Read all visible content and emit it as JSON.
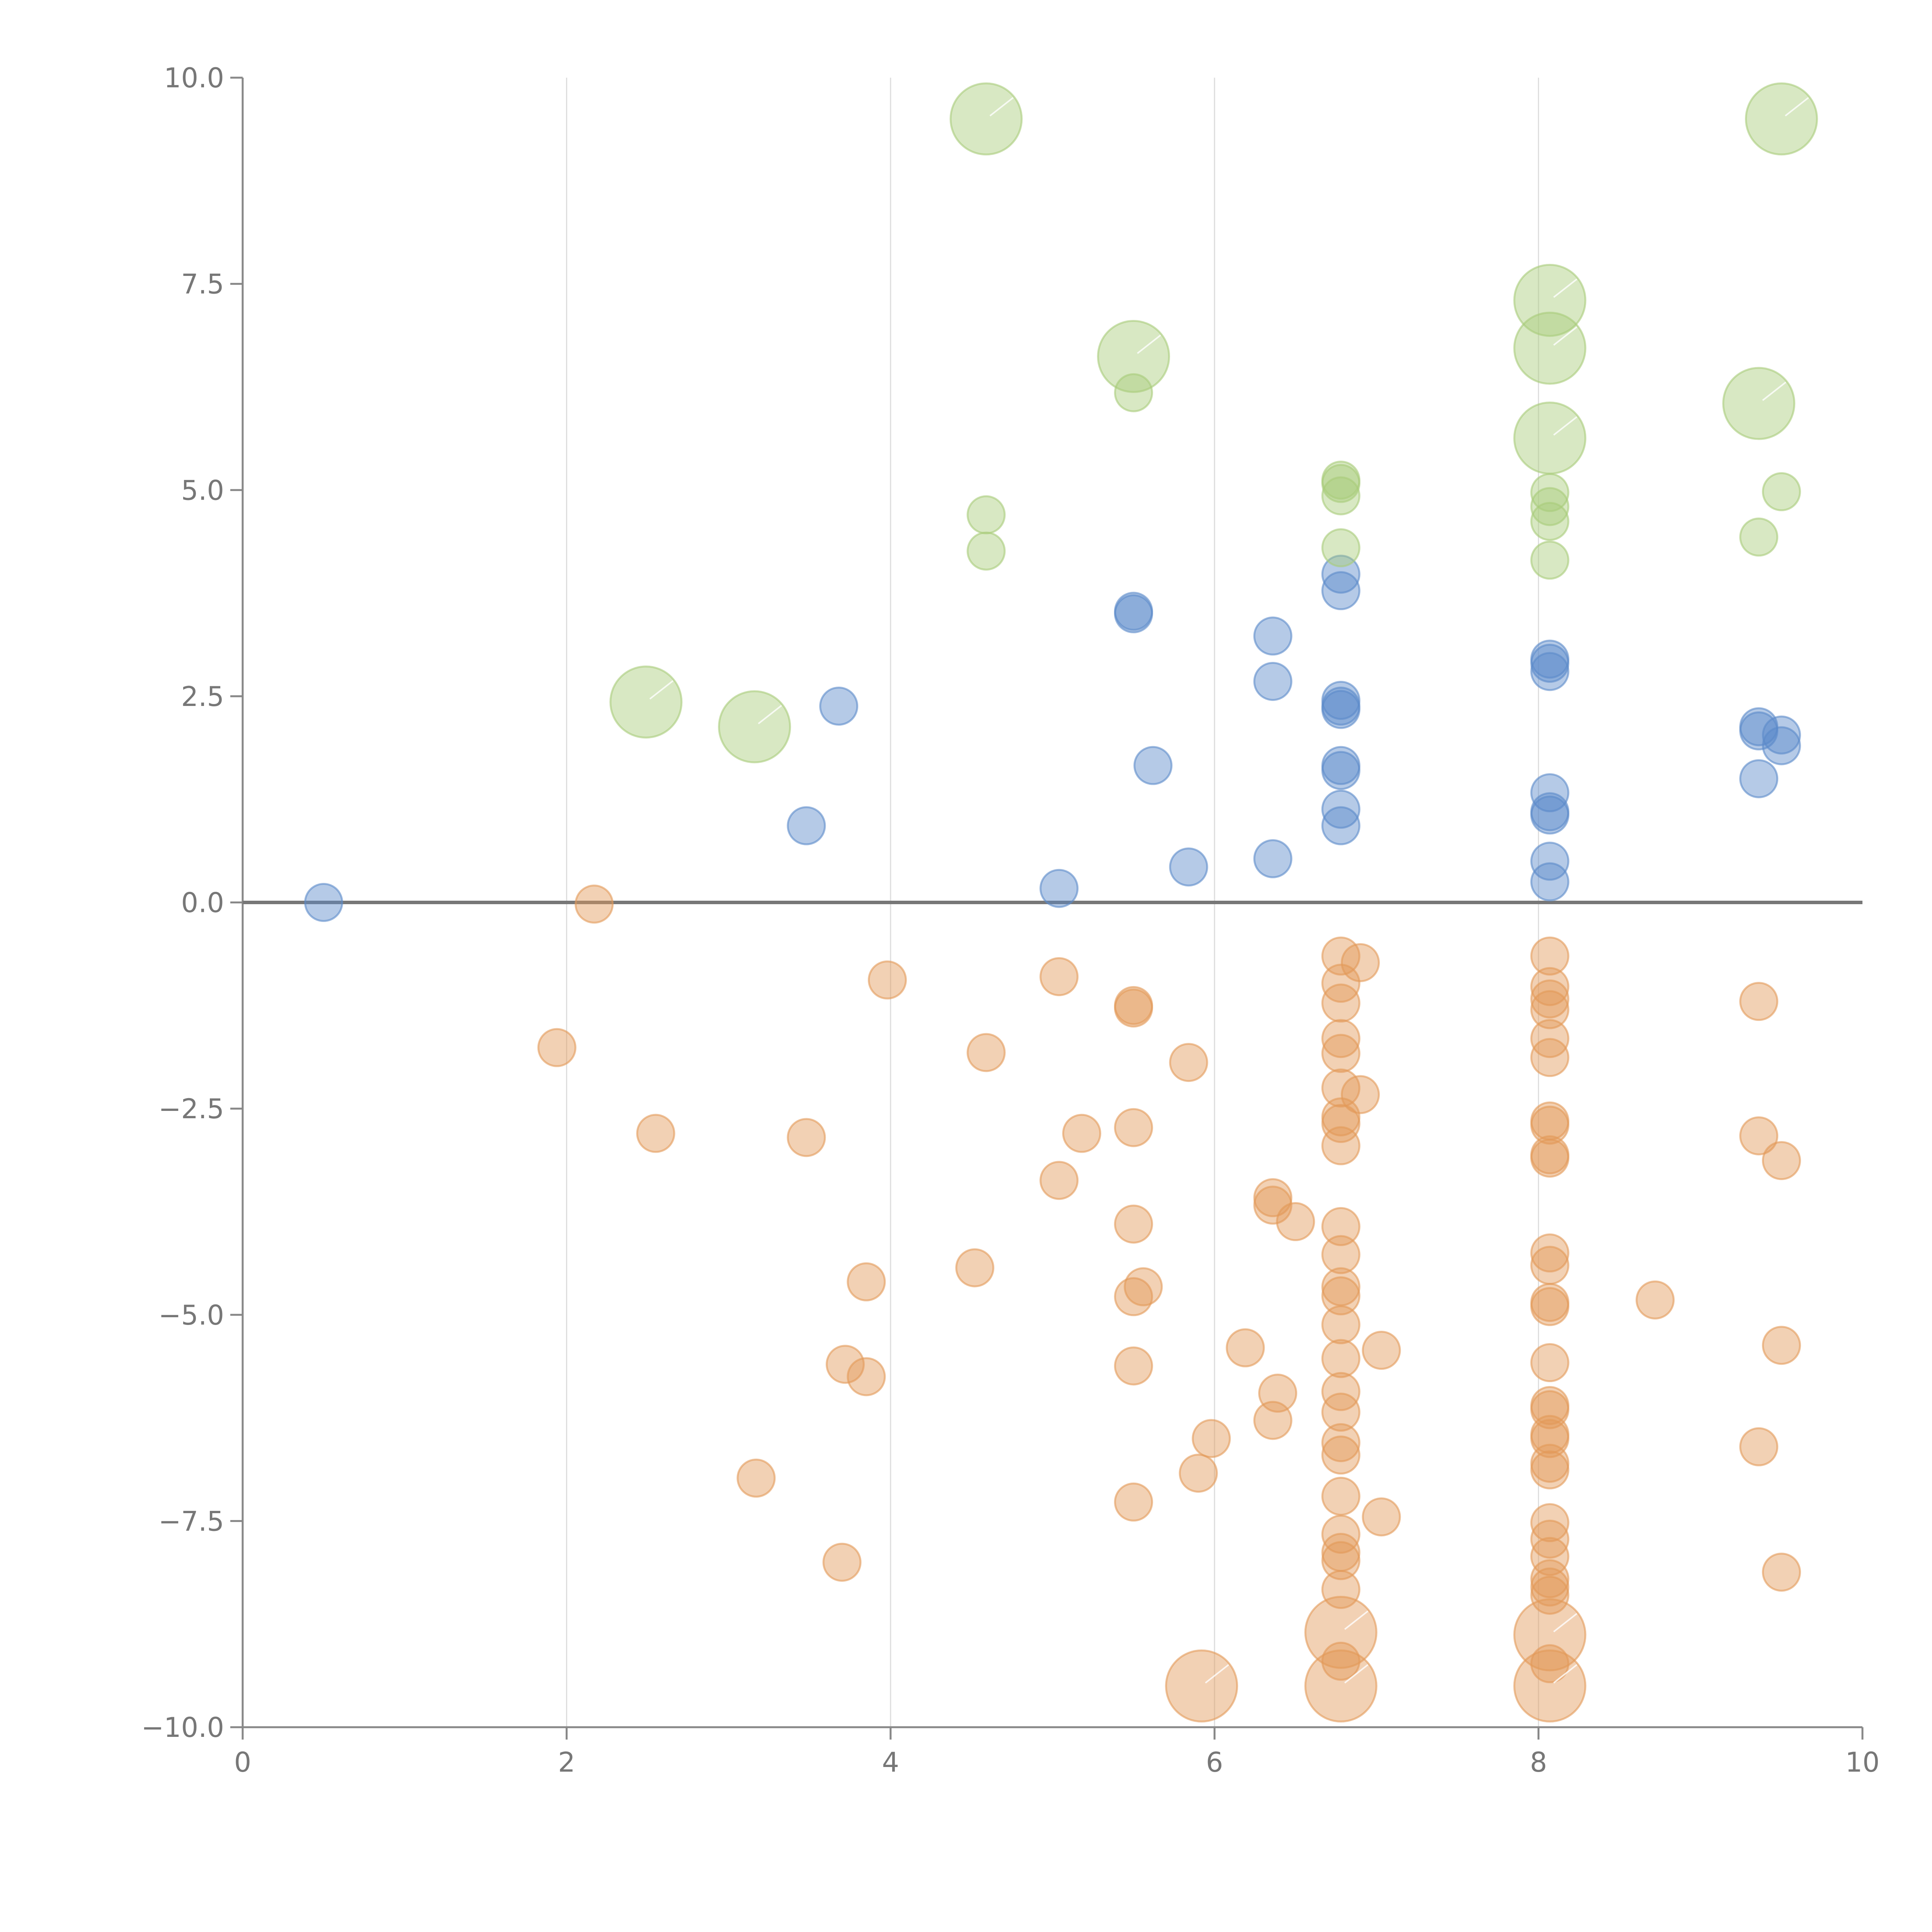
{
  "chart_data": {
    "type": "scatter",
    "title": "",
    "xlabel": "",
    "ylabel": "",
    "xlim": [
      0,
      10
    ],
    "ylim": [
      -10,
      10
    ],
    "grid": "vertical",
    "x_ticks": [
      "0",
      "2",
      "4",
      "6",
      "8",
      "10"
    ],
    "x_tick_values": [
      0,
      2,
      4,
      6,
      8,
      10
    ],
    "y_ticks": [
      "10.0",
      "7.5",
      "5.0",
      "2.5",
      "0.0",
      "−2.5",
      "−5.0",
      "−7.5",
      "−10.0"
    ],
    "y_tick_values": [
      10,
      7.5,
      5,
      2.5,
      0,
      -2.5,
      -5,
      -7.5,
      -10
    ],
    "colors": {
      "positive": "#5b8ac9",
      "negative": "#e39a58",
      "highlight": "#a9cc7a"
    },
    "point_size_small": 1,
    "point_size_large": 2,
    "series": [
      {
        "name": "positive",
        "color": "#5b8ac9",
        "points": [
          [
            0.5,
            0.0
          ],
          [
            3.48,
            0.93
          ],
          [
            3.68,
            2.38
          ],
          [
            5.04,
            0.17
          ],
          [
            5.5,
            3.5
          ],
          [
            5.5,
            3.53
          ],
          [
            5.62,
            1.66
          ],
          [
            5.84,
            0.43
          ],
          [
            6.36,
            3.23
          ],
          [
            6.36,
            2.68
          ],
          [
            6.36,
            0.53
          ],
          [
            6.78,
            3.98
          ],
          [
            6.78,
            3.78
          ],
          [
            6.78,
            2.45
          ],
          [
            6.78,
            2.34
          ],
          [
            6.78,
            2.38
          ],
          [
            6.78,
            1.66
          ],
          [
            6.78,
            1.6
          ],
          [
            6.78,
            1.13
          ],
          [
            6.78,
            0.93
          ],
          [
            8.07,
            2.95
          ],
          [
            8.07,
            2.9
          ],
          [
            8.07,
            2.8
          ],
          [
            8.07,
            1.33
          ],
          [
            8.07,
            1.1
          ],
          [
            8.07,
            1.06
          ],
          [
            8.07,
            0.5
          ],
          [
            8.07,
            0.25
          ],
          [
            9.36,
            2.13
          ],
          [
            9.36,
            2.08
          ],
          [
            9.36,
            1.5
          ],
          [
            9.5,
            2.03
          ],
          [
            9.5,
            1.9
          ]
        ]
      },
      {
        "name": "negative",
        "color": "#e39a58",
        "points": [
          [
            2.17,
            -0.02
          ],
          [
            1.94,
            -1.76
          ],
          [
            2.55,
            -2.8
          ],
          [
            3.17,
            -6.98
          ],
          [
            3.48,
            -2.85
          ],
          [
            3.7,
            -8.0
          ],
          [
            3.72,
            -5.6
          ],
          [
            3.85,
            -4.6
          ],
          [
            3.85,
            -5.75
          ],
          [
            3.98,
            -0.94
          ],
          [
            4.52,
            -4.43
          ],
          [
            4.59,
            -1.82
          ],
          [
            5.04,
            -0.9
          ],
          [
            5.04,
            -3.37
          ],
          [
            5.18,
            -2.8
          ],
          [
            5.5,
            -1.25
          ],
          [
            5.5,
            -1.28
          ],
          [
            5.5,
            -2.73
          ],
          [
            5.5,
            -3.9
          ],
          [
            5.5,
            -4.78
          ],
          [
            5.56,
            -4.66
          ],
          [
            5.5,
            -5.62
          ],
          [
            5.5,
            -7.27
          ],
          [
            5.84,
            -1.94
          ],
          [
            5.9,
            -6.92
          ],
          [
            5.98,
            -6.5
          ],
          [
            6.19,
            -5.4
          ],
          [
            6.36,
            -3.58
          ],
          [
            6.36,
            -3.67
          ],
          [
            6.39,
            -5.95
          ],
          [
            6.36,
            -6.28
          ],
          [
            6.5,
            -3.87
          ],
          [
            6.78,
            -0.65
          ],
          [
            6.9,
            -0.73
          ],
          [
            6.78,
            -0.98
          ],
          [
            6.78,
            -1.22
          ],
          [
            6.78,
            -1.65
          ],
          [
            6.78,
            -1.83
          ],
          [
            6.78,
            -2.25
          ],
          [
            6.9,
            -2.33
          ],
          [
            6.78,
            -2.6
          ],
          [
            6.78,
            -2.68
          ],
          [
            6.78,
            -2.95
          ],
          [
            6.78,
            -3.93
          ],
          [
            6.78,
            -4.27
          ],
          [
            6.78,
            -4.66
          ],
          [
            6.78,
            -4.77
          ],
          [
            6.78,
            -5.12
          ],
          [
            6.78,
            -5.53
          ],
          [
            6.78,
            -5.93
          ],
          [
            6.78,
            -6.18
          ],
          [
            6.78,
            -6.55
          ],
          [
            6.78,
            -6.7
          ],
          [
            6.78,
            -7.2
          ],
          [
            6.78,
            -7.66
          ],
          [
            6.78,
            -7.88
          ],
          [
            6.78,
            -7.98
          ],
          [
            6.78,
            -8.33
          ],
          [
            6.78,
            -9.2
          ],
          [
            7.03,
            -5.43
          ],
          [
            7.03,
            -7.45
          ],
          [
            8.07,
            -0.65
          ],
          [
            8.07,
            -1.02
          ],
          [
            8.07,
            -1.17
          ],
          [
            8.07,
            -1.3
          ],
          [
            8.07,
            -1.65
          ],
          [
            8.07,
            -1.88
          ],
          [
            8.07,
            -2.65
          ],
          [
            8.07,
            -2.7
          ],
          [
            8.07,
            -3.06
          ],
          [
            8.07,
            -3.1
          ],
          [
            8.07,
            -4.25
          ],
          [
            8.07,
            -4.4
          ],
          [
            8.07,
            -4.85
          ],
          [
            8.07,
            -4.9
          ],
          [
            8.07,
            -5.58
          ],
          [
            8.07,
            -6.1
          ],
          [
            8.07,
            -6.15
          ],
          [
            8.07,
            -6.45
          ],
          [
            8.07,
            -6.5
          ],
          [
            8.07,
            -6.8
          ],
          [
            8.07,
            -6.88
          ],
          [
            8.07,
            -7.52
          ],
          [
            8.07,
            -7.72
          ],
          [
            8.07,
            -7.93
          ],
          [
            8.07,
            -8.2
          ],
          [
            8.07,
            -8.3
          ],
          [
            8.07,
            -8.4
          ],
          [
            8.07,
            -9.23
          ],
          [
            8.72,
            -4.82
          ],
          [
            9.36,
            -1.2
          ],
          [
            9.36,
            -2.83
          ],
          [
            9.5,
            -3.13
          ],
          [
            9.5,
            -5.37
          ],
          [
            9.36,
            -6.6
          ],
          [
            9.5,
            -8.12
          ]
        ]
      },
      {
        "name": "highlight",
        "color": "#a9cc7a",
        "points": [
          [
            4.59,
            4.7
          ],
          [
            4.59,
            4.26
          ],
          [
            5.5,
            6.18
          ],
          [
            6.78,
            5.12
          ],
          [
            6.78,
            5.08
          ],
          [
            6.78,
            4.93
          ],
          [
            6.78,
            4.3
          ],
          [
            8.07,
            4.97
          ],
          [
            8.07,
            4.8
          ],
          [
            8.07,
            4.62
          ],
          [
            8.07,
            4.15
          ],
          [
            9.36,
            4.43
          ],
          [
            9.5,
            4.98
          ]
        ]
      },
      {
        "name": "highlight-large",
        "color": "#a9cc7a",
        "size": "large",
        "points": [
          [
            2.49,
            2.43
          ],
          [
            3.16,
            2.13
          ],
          [
            4.59,
            9.5
          ],
          [
            5.5,
            6.62
          ],
          [
            8.07,
            7.3
          ],
          [
            8.07,
            6.72
          ],
          [
            8.07,
            5.63
          ],
          [
            9.36,
            6.05
          ],
          [
            9.5,
            9.5
          ]
        ]
      },
      {
        "name": "negative-large",
        "color": "#e39a58",
        "size": "large",
        "points": [
          [
            5.92,
            -9.5
          ],
          [
            6.78,
            -8.85
          ],
          [
            6.78,
            -9.5
          ],
          [
            8.07,
            -8.88
          ],
          [
            8.07,
            -9.5
          ]
        ]
      }
    ]
  }
}
